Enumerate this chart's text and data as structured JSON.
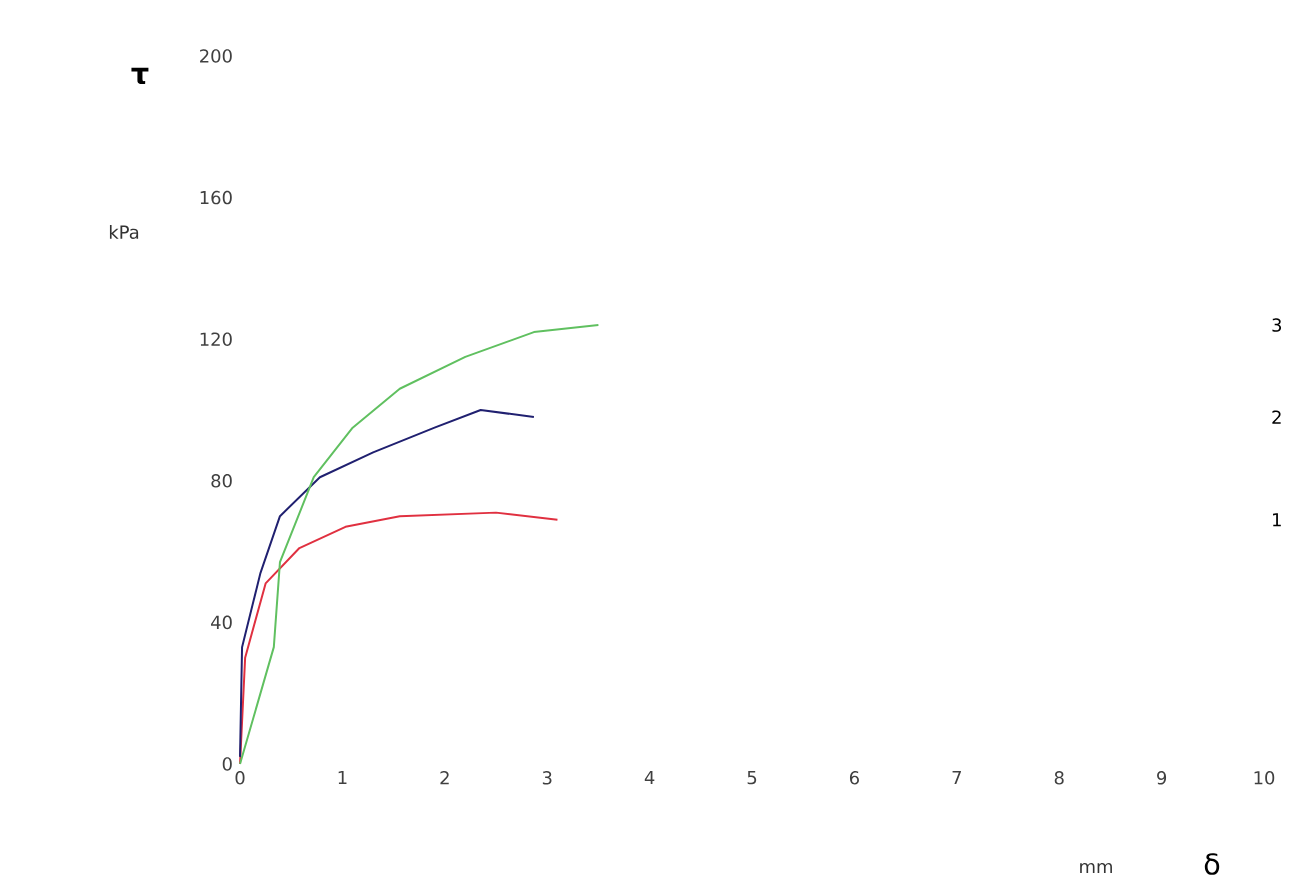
{
  "chart_data": {
    "type": "line",
    "xlabel": "δ",
    "ylabel": "τ",
    "annotations": [
      "kPa",
      "mm"
    ],
    "xlim": [
      0,
      10
    ],
    "ylim": [
      0,
      200
    ],
    "xticks": [
      0,
      1,
      2,
      3,
      4,
      5,
      6,
      7,
      8,
      9,
      10
    ],
    "yticks": [
      0,
      40,
      80,
      120,
      160,
      200
    ],
    "grid": false,
    "legend": false,
    "marker": "none",
    "line_style": "solid",
    "series": [
      {
        "name": "1",
        "color": "#e03040",
        "x": [
          0,
          0.05,
          0.25,
          0.58,
          1.03,
          1.56,
          2.5,
          3.1
        ],
        "values": [
          0,
          30,
          51,
          61,
          67,
          70,
          71,
          69
        ]
      },
      {
        "name": "2",
        "color": "#202070",
        "x": [
          0,
          0.02,
          0.2,
          0.39,
          0.78,
          1.3,
          1.9,
          2.35,
          2.87
        ],
        "values": [
          2,
          33,
          54,
          70,
          81,
          88,
          95,
          100,
          98
        ]
      },
      {
        "name": "3",
        "color": "#60c060",
        "x": [
          0,
          0.33,
          0.39,
          0.72,
          1.1,
          1.56,
          2.2,
          2.87,
          3.5
        ],
        "values": [
          0,
          33,
          57,
          81,
          95,
          106,
          115,
          122,
          124
        ]
      }
    ]
  }
}
